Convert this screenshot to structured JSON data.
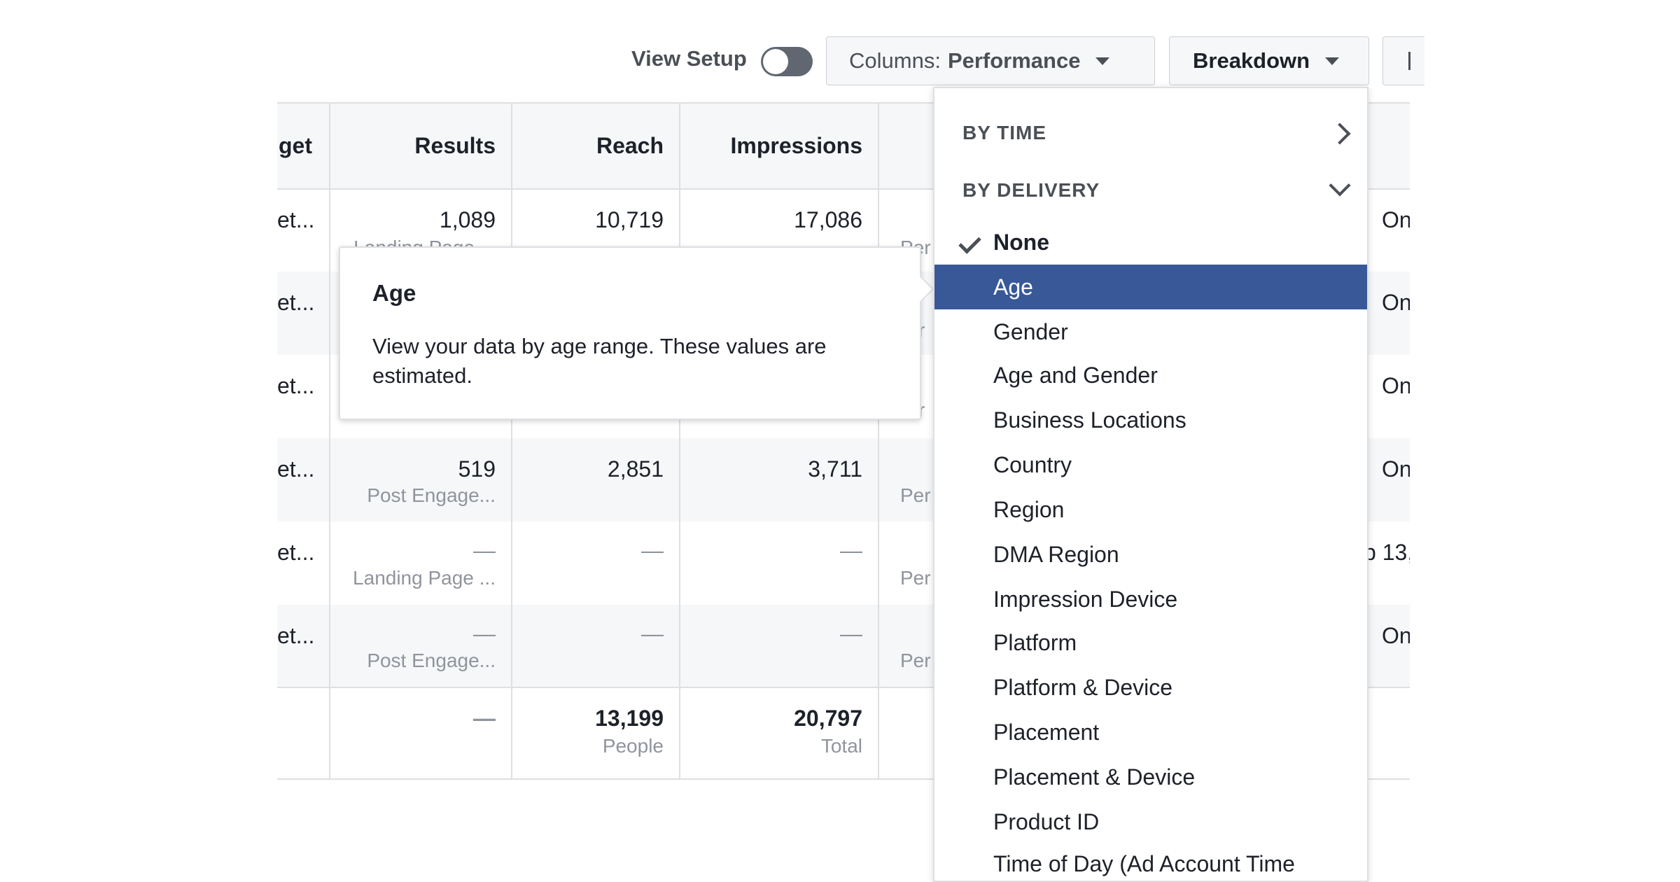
{
  "toolbar": {
    "view_setup_label": "View Setup",
    "columns_prefix": "Columns:",
    "columns_value": "Performance",
    "breakdown_label": "Breakdown"
  },
  "table": {
    "headers": {
      "budget": "get",
      "results": "Results",
      "reach": "Reach",
      "impressions": "Impressions"
    },
    "rows": [
      {
        "name": "et...",
        "results": "1,089",
        "result_type": "Landing Page",
        "reach": "10,719",
        "impressions": "17,086",
        "cost": "Per",
        "status": "On"
      },
      {
        "name": "et...",
        "results": "",
        "result_type": "",
        "reach": "",
        "impressions": "",
        "cost": "r",
        "status": "On"
      },
      {
        "name": "et...",
        "results": "",
        "result_type": "",
        "reach": "",
        "impressions": "",
        "cost": "r",
        "status": "On"
      },
      {
        "name": "et...",
        "results": "519",
        "result_type": "Post Engage...",
        "reach": "2,851",
        "impressions": "3,711",
        "cost": "Per",
        "status": "On"
      },
      {
        "name": "et...",
        "results": "—",
        "result_type": "Landing Page ...",
        "reach": "—",
        "impressions": "—",
        "cost": "Per",
        "status": "p 13,"
      },
      {
        "name": "et...",
        "results": "—",
        "result_type": "Post Engage...",
        "reach": "—",
        "impressions": "—",
        "cost": "Per",
        "status": "On"
      }
    ],
    "totals": {
      "results": "—",
      "reach": "13,199",
      "reach_label": "People",
      "impressions": "20,797",
      "impressions_label": "Total"
    }
  },
  "tooltip": {
    "title": "Age",
    "body": "View your data by age range. These values are estimated."
  },
  "dropdown": {
    "by_time": "BY TIME",
    "by_delivery": "BY DELIVERY",
    "options": [
      "None",
      "Age",
      "Gender",
      "Age and Gender",
      "Business Locations",
      "Country",
      "Region",
      "DMA Region",
      "Impression Device",
      "Platform",
      "Platform & Device",
      "Placement",
      "Placement & Device",
      "Product ID",
      "Time of Day (Ad Account Time"
    ],
    "checked": "None",
    "highlighted": "Age"
  },
  "colors": {
    "highlight": "#385898",
    "border": "#dddfe2",
    "muted_text": "#90949c"
  }
}
